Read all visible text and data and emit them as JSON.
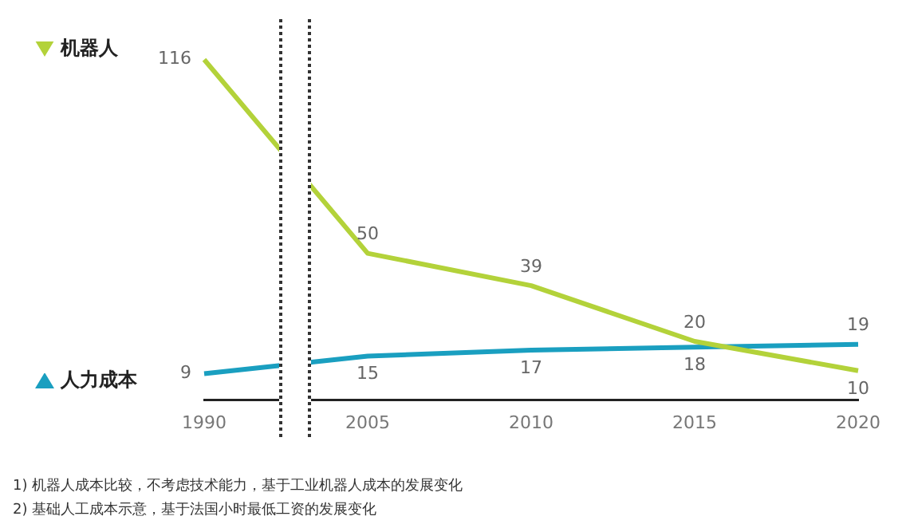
{
  "chart_data": {
    "type": "line",
    "categories": [
      "1990",
      "2005",
      "2010",
      "2015",
      "2020"
    ],
    "series": [
      {
        "name": "机器人",
        "color": "#b3d23a",
        "values": [
          116,
          50,
          39,
          20,
          10
        ]
      },
      {
        "name": "人力成本",
        "color": "#1a9fc0",
        "values": [
          9,
          15,
          17,
          18,
          19
        ]
      }
    ],
    "data_labels": true,
    "grid": false,
    "legend": "left",
    "annotations": [
      "1) 机器人成本比较，不考虑技术能力，基于工业机器人成本的发展变化",
      "2) 基础人工成本示意，基于法国小时最低工资的发展变化"
    ]
  }
}
